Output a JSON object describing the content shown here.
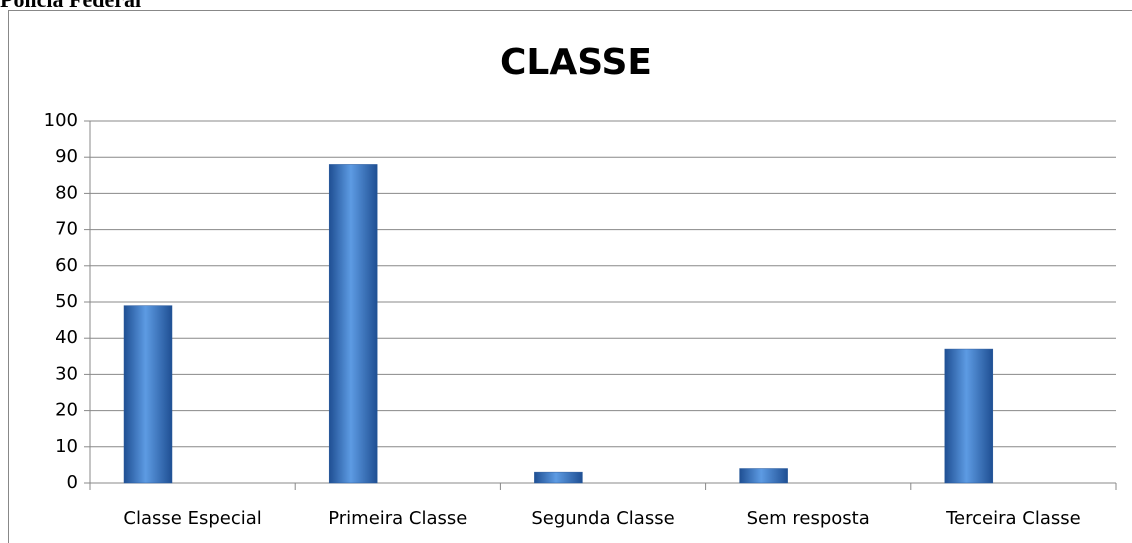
{
  "caption": "Polícia Federal",
  "chart_data": {
    "type": "bar",
    "title": "CLASSE",
    "categories": [
      "Classe Especial",
      "Primeira Classe",
      "Segunda Classe",
      "Sem resposta",
      "Terceira Classe"
    ],
    "values": [
      49,
      88,
      3,
      4,
      37
    ],
    "color": "#4a86d0",
    "ylim": [
      0,
      100
    ],
    "yticks": [
      0,
      10,
      20,
      30,
      40,
      50,
      60,
      70,
      80,
      90,
      100
    ],
    "grid": true
  }
}
